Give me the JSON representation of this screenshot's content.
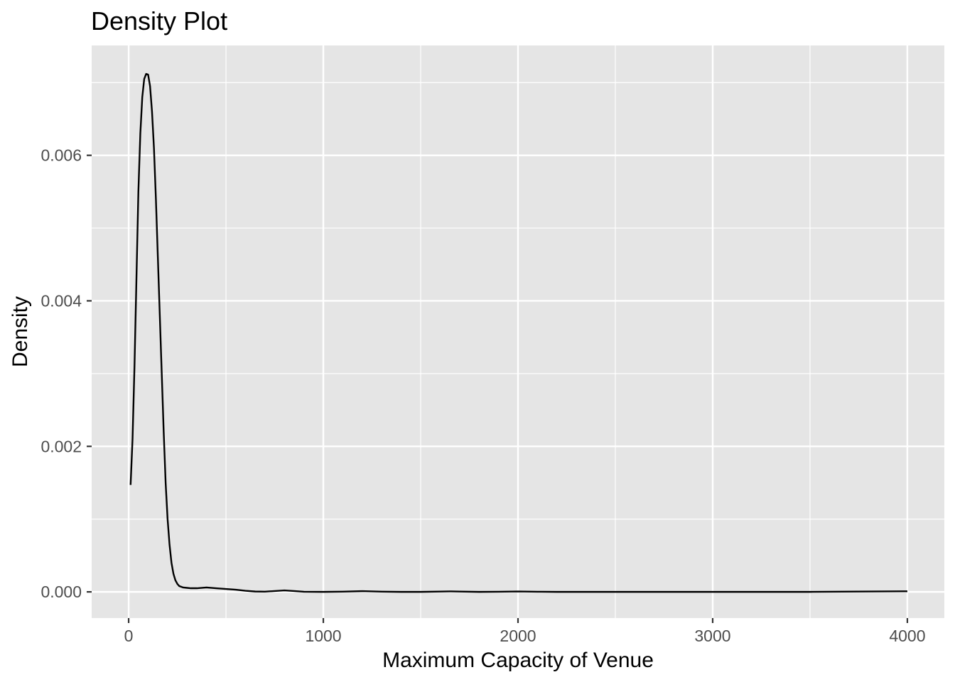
{
  "chart_data": {
    "type": "line",
    "title": "Density Plot",
    "xlabel": "Maximum Capacity of Venue",
    "ylabel": "Density",
    "xlim": [
      -190,
      4190
    ],
    "ylim": [
      -0.00036,
      0.00751
    ],
    "x_ticks": [
      0,
      1000,
      2000,
      3000,
      4000
    ],
    "x_tick_labels": [
      "0",
      "1000",
      "2000",
      "3000",
      "4000"
    ],
    "y_ticks": [
      0.0,
      0.002,
      0.004,
      0.006
    ],
    "y_tick_labels": [
      "0.000",
      "0.002",
      "0.004",
      "0.006"
    ],
    "x_minor_ticks": [
      500,
      1500,
      2500,
      3500
    ],
    "y_minor_ticks": [
      0.001,
      0.003,
      0.005,
      0.007
    ],
    "grid": true,
    "panel_background": "#e5e5e5",
    "grid_color": "#ffffff",
    "line_color": "#000000",
    "series": [
      {
        "x": [
          10,
          20,
          30,
          40,
          50,
          60,
          70,
          80,
          90,
          100,
          110,
          120,
          130,
          140,
          150,
          160,
          170,
          180,
          190,
          200,
          210,
          220,
          230,
          240,
          250,
          260,
          280,
          300,
          320,
          350,
          400,
          450,
          500,
          550,
          600,
          650,
          700,
          750,
          800,
          850,
          900,
          1000,
          1100,
          1200,
          1300,
          1400,
          1500,
          1600,
          1650,
          1700,
          1800,
          1900,
          2000,
          2100,
          2200,
          2500,
          3000,
          3500,
          4000
        ],
        "y": [
          0.00147,
          0.0021,
          0.0031,
          0.0043,
          0.0055,
          0.0063,
          0.0068,
          0.00705,
          0.00712,
          0.00711,
          0.00695,
          0.0066,
          0.0061,
          0.0054,
          0.0046,
          0.0038,
          0.003,
          0.0022,
          0.0015,
          0.001,
          0.00065,
          0.0004,
          0.00025,
          0.00016,
          0.00011,
          8e-05,
          6e-05,
          5.5e-05,
          5e-05,
          5e-05,
          6e-05,
          5e-05,
          4e-05,
          3e-05,
          1.5e-05,
          5e-06,
          3e-06,
          1.2e-05,
          2e-05,
          1.2e-05,
          2e-06,
          0.0,
          3e-06,
          1e-05,
          3e-06,
          0.0,
          0.0,
          4e-06,
          7e-06,
          4e-06,
          0.0,
          2e-06,
          6e-06,
          2e-06,
          0.0,
          0.0,
          0.0,
          0.0,
          8e-06
        ]
      }
    ]
  }
}
